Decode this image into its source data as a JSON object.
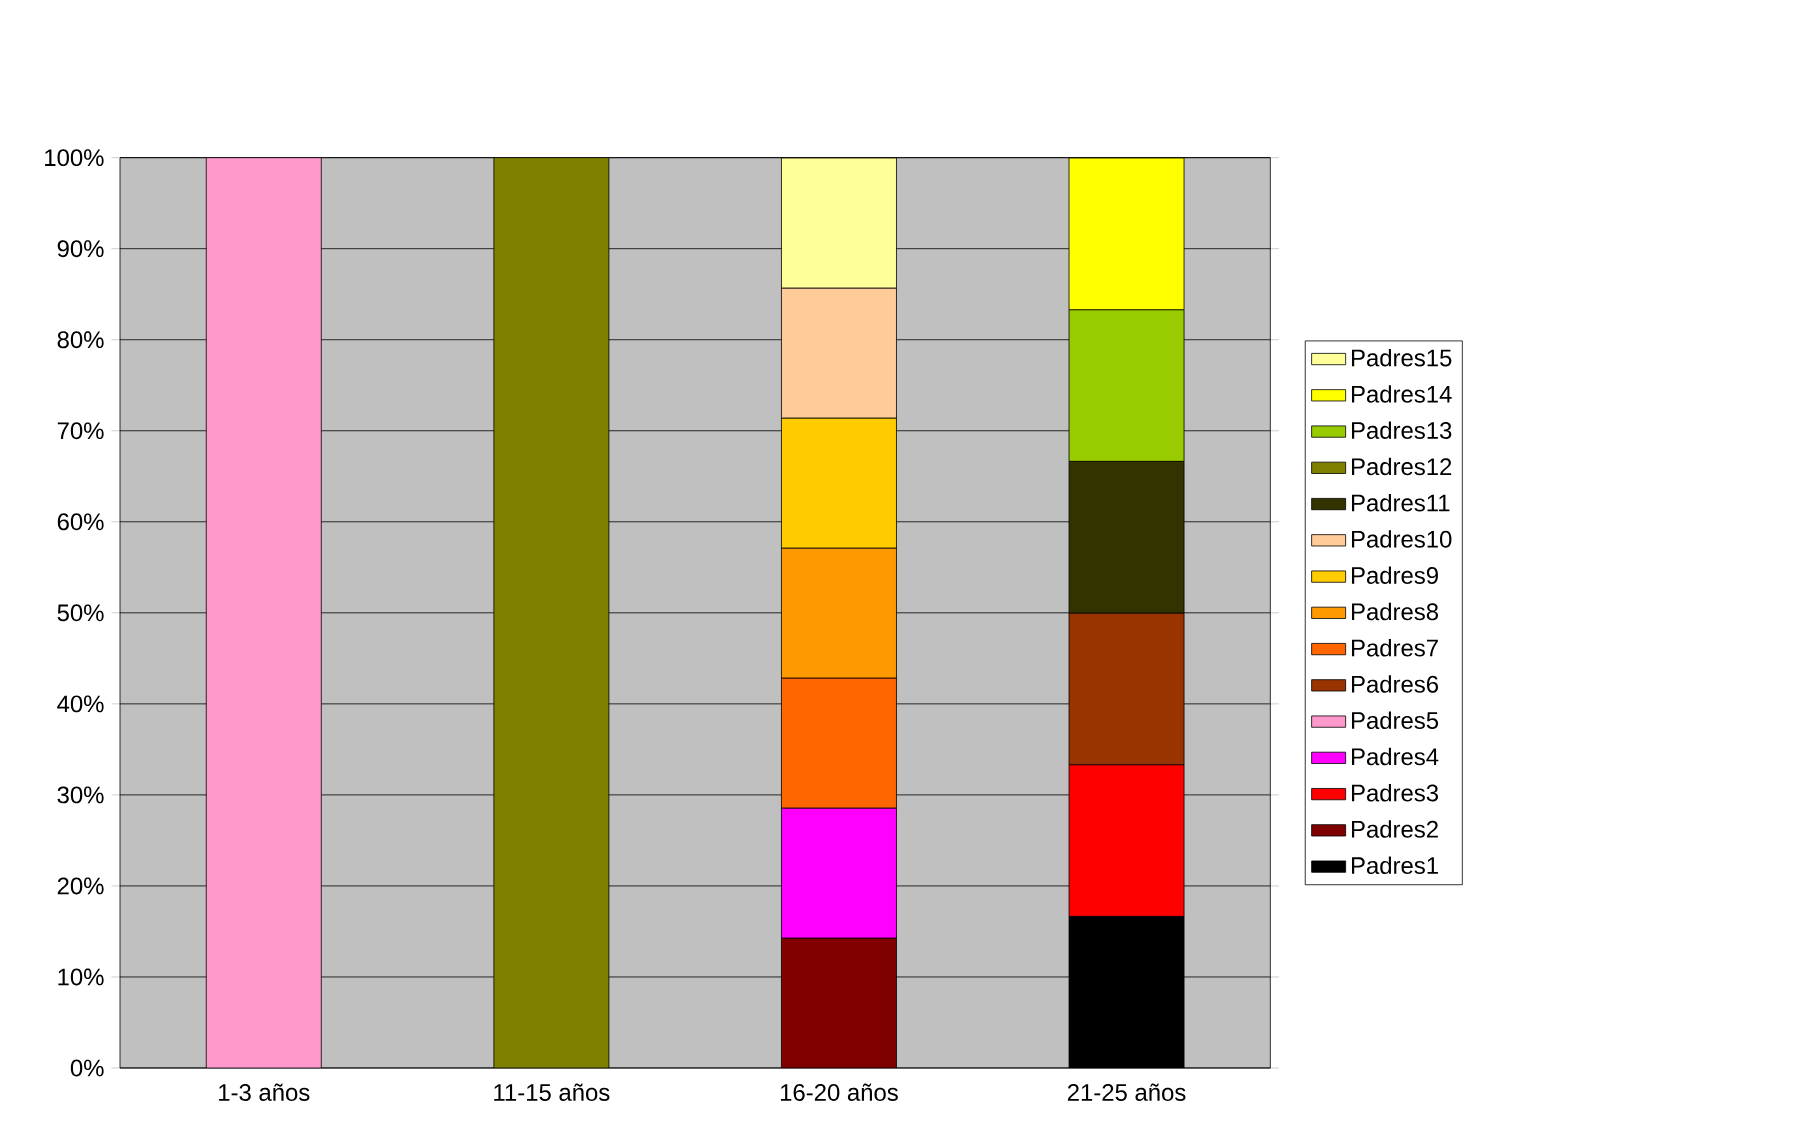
{
  "chart_data": {
    "type": "bar",
    "stacked": true,
    "categories": [
      "1-3 años",
      "11-15 años",
      "16-20 años",
      "21-25 años"
    ],
    "series": [
      {
        "name": "Padres1",
        "color": "#000000",
        "values": [
          null,
          null,
          null,
          16.66
        ]
      },
      {
        "name": "Padres2",
        "color": "#800000",
        "values": [
          null,
          null,
          14.28,
          null
        ]
      },
      {
        "name": "Padres3",
        "color": "#ff0000",
        "values": [
          null,
          null,
          null,
          16.66
        ]
      },
      {
        "name": "Padres4",
        "color": "#ff00ff",
        "values": [
          null,
          null,
          14.28,
          null
        ]
      },
      {
        "name": "Padres5",
        "color": "#ff99cc",
        "values": [
          100,
          null,
          null,
          null
        ]
      },
      {
        "name": "Padres6",
        "color": "#993300",
        "values": [
          null,
          null,
          null,
          16.66
        ]
      },
      {
        "name": "Padres7",
        "color": "#ff6600",
        "values": [
          null,
          null,
          14.28,
          null
        ]
      },
      {
        "name": "Padres8",
        "color": "#ff9900",
        "values": [
          null,
          null,
          14.28,
          null
        ]
      },
      {
        "name": "Padres9",
        "color": "#ffcc00",
        "values": [
          null,
          null,
          14.28,
          null
        ]
      },
      {
        "name": "Padres10",
        "color": "#ffcc99",
        "values": [
          null,
          null,
          14.28,
          null
        ]
      },
      {
        "name": "Padres11",
        "color": "#333300",
        "values": [
          null,
          null,
          null,
          16.66
        ]
      },
      {
        "name": "Padres12",
        "color": "#808000",
        "values": [
          null,
          100,
          null,
          null
        ]
      },
      {
        "name": "Padres13",
        "color": "#99cc00",
        "values": [
          null,
          null,
          null,
          16.66
        ]
      },
      {
        "name": "Padres14",
        "color": "#ffff00",
        "values": [
          null,
          null,
          null,
          16.66
        ]
      },
      {
        "name": "Padres15",
        "color": "#ffff99",
        "values": [
          null,
          null,
          14.28,
          null
        ]
      }
    ],
    "ylim": [
      0,
      100
    ],
    "yticks": [
      {
        "value": 0,
        "label": "0%"
      },
      {
        "value": 10,
        "label": "10%"
      },
      {
        "value": 20,
        "label": "20%"
      },
      {
        "value": 30,
        "label": "30%"
      },
      {
        "value": 40,
        "label": "40%"
      },
      {
        "value": 50,
        "label": "50%"
      },
      {
        "value": 60,
        "label": "60%"
      },
      {
        "value": 70,
        "label": "70%"
      },
      {
        "value": 80,
        "label": "80%"
      },
      {
        "value": 90,
        "label": "90%"
      },
      {
        "value": 100,
        "label": "100%"
      }
    ],
    "grid": "y",
    "legend": "right"
  }
}
